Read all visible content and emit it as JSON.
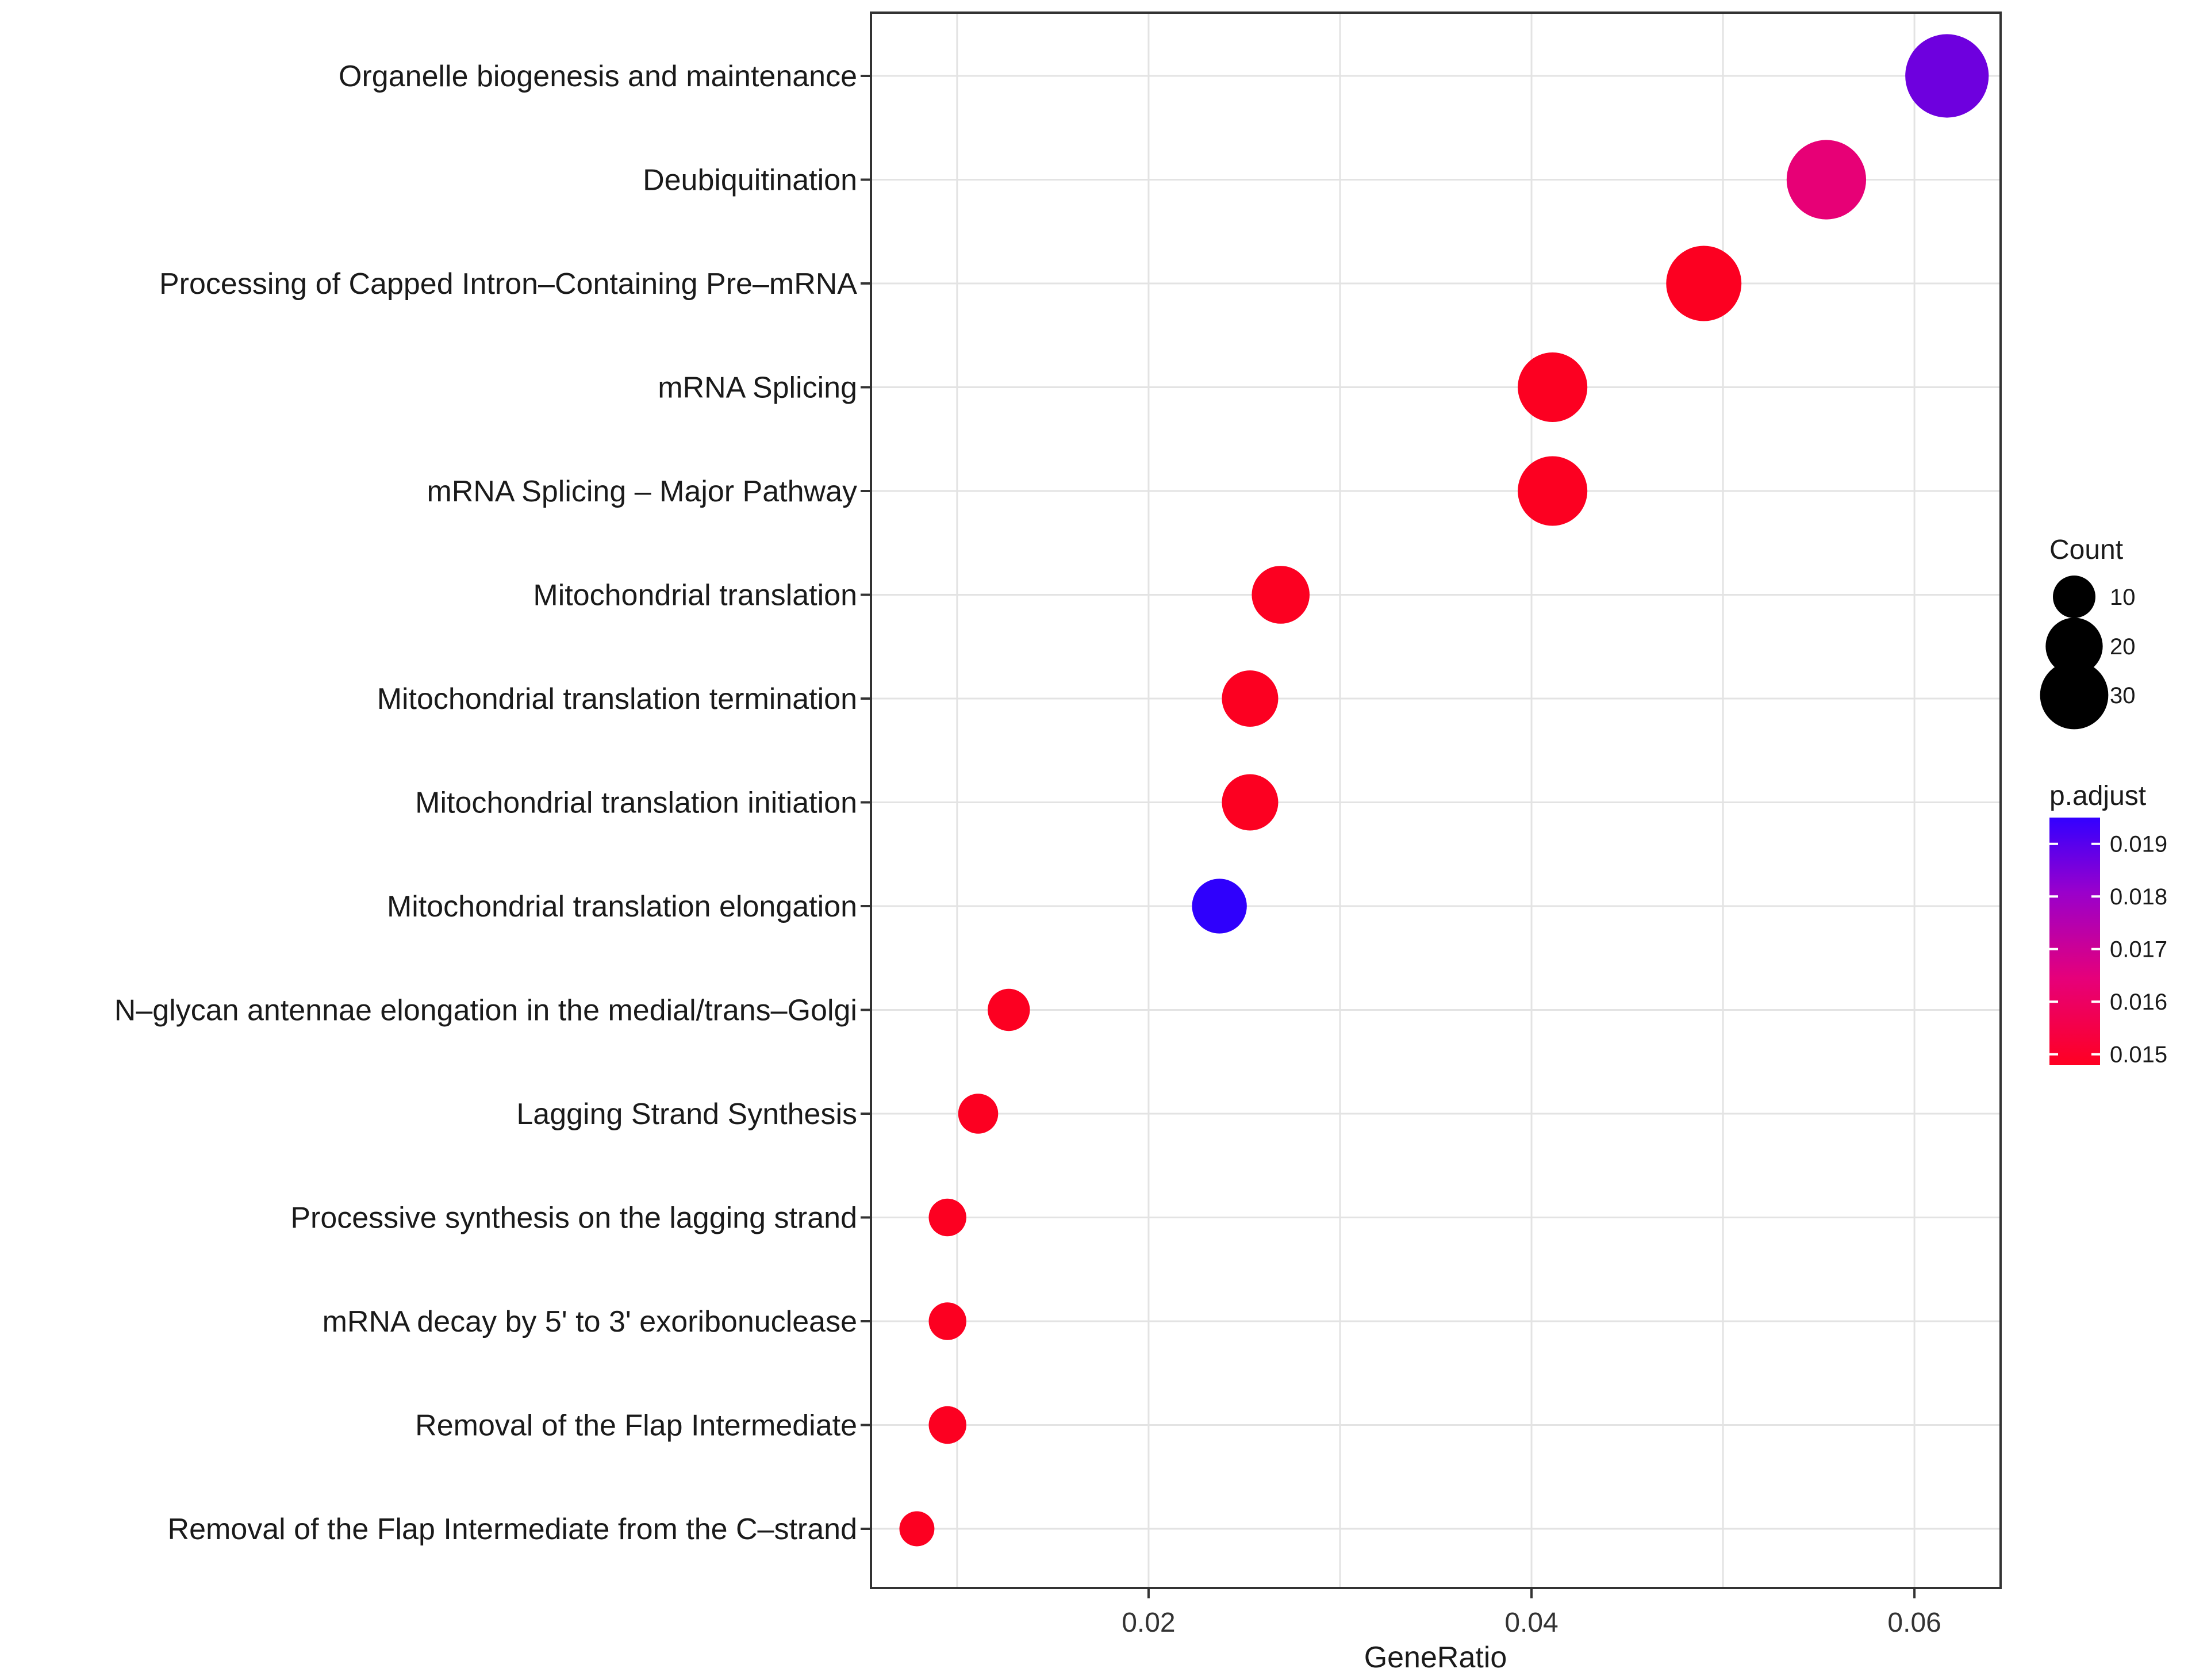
{
  "chart_data": {
    "type": "scatter",
    "title": "",
    "xlabel": "GeneRatio",
    "ylabel": "",
    "xlim": [
      0.0055,
      0.0645
    ],
    "xticks": [
      0.02,
      0.04,
      0.06
    ],
    "xtick_labels": [
      "0.02",
      "0.04",
      "0.06"
    ],
    "grid": true,
    "categories": [
      "Organelle biogenesis and maintenance",
      "Deubiquitination",
      "Processing of Capped Intron–Containing Pre–mRNA",
      "mRNA Splicing",
      "mRNA Splicing – Major Pathway",
      "Mitochondrial translation",
      "Mitochondrial translation termination",
      "Mitochondrial translation initiation",
      "Mitochondrial translation elongation",
      "N–glycan antennae elongation in the medial/trans–Golgi",
      "Lagging Strand Synthesis",
      "Processive synthesis on the lagging strand",
      "mRNA decay by 5' to 3' exoribonuclease",
      "Removal of the Flap Intermediate",
      "Removal of the Flap Intermediate from the C–strand"
    ],
    "gene_ratio": [
      0.0617,
      0.0554,
      0.049,
      0.0411,
      0.0411,
      0.0269,
      0.0253,
      0.0253,
      0.0237,
      0.0127,
      0.0111,
      0.0095,
      0.0095,
      0.0095,
      0.0079
    ],
    "count": [
      39,
      35,
      31,
      26,
      26,
      17,
      16,
      16,
      15,
      8,
      7,
      6,
      6,
      6,
      5
    ],
    "p_adjust": [
      0.0185,
      0.0163,
      0.015,
      0.015,
      0.015,
      0.015,
      0.015,
      0.015,
      0.0194,
      0.015,
      0.015,
      0.015,
      0.015,
      0.015,
      0.015
    ],
    "size_legend": {
      "title": "Count",
      "values": [
        10,
        20,
        30
      ],
      "labels": [
        "10",
        "20",
        "30"
      ]
    },
    "color_legend": {
      "title": "p.adjust",
      "min": 0.0148,
      "max": 0.0195,
      "ticks": [
        0.019,
        0.018,
        0.017,
        0.016,
        0.015
      ],
      "tick_labels": [
        "0.019",
        "0.018",
        "0.017",
        "0.016",
        "0.015"
      ],
      "low_color": "#FF0000",
      "high_color": "#0000FF"
    }
  }
}
